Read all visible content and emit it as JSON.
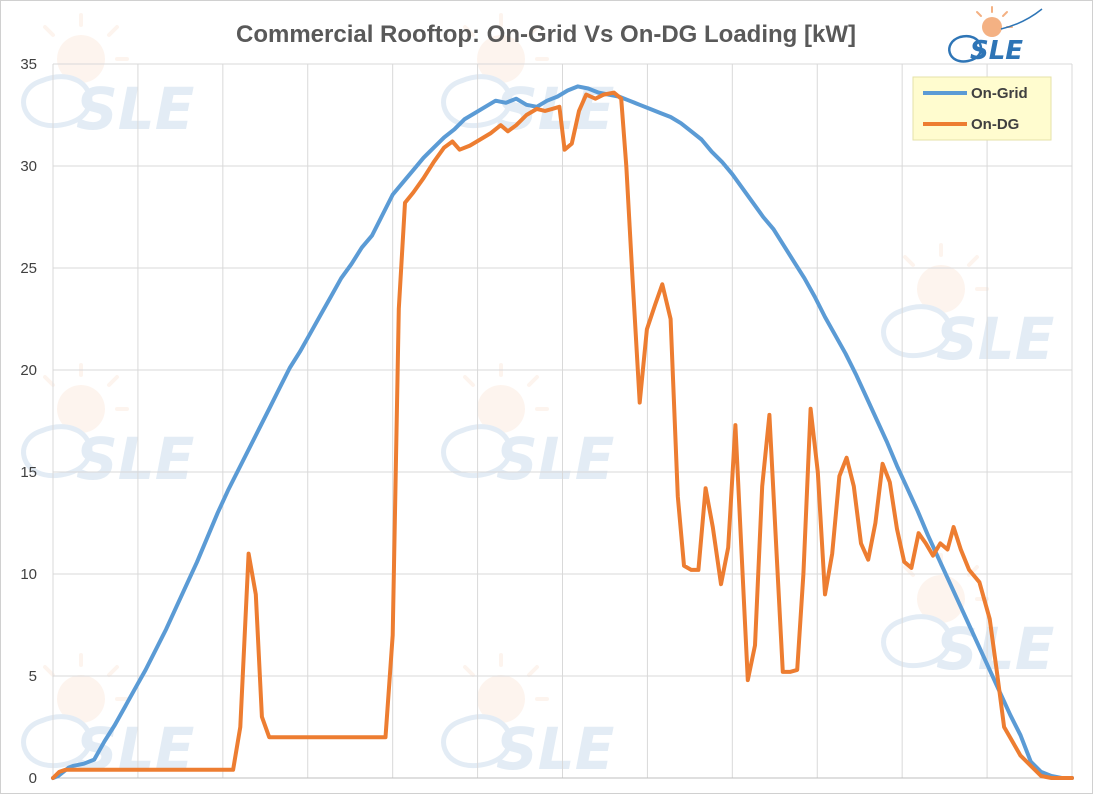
{
  "logo": {
    "text": "SLE"
  },
  "colors": {
    "on_grid": "#5b9bd5",
    "on_dg": "#ed7d31",
    "grid": "#d9d9d9",
    "legend_bg": "#fffccf",
    "logo_blue": "#2e75b6",
    "logo_sun": "#f4b183"
  },
  "chart_data": {
    "type": "line",
    "title": "Commercial Rooftop: On-Grid Vs On-DG Loading [kW]",
    "xlabel": "",
    "ylabel": "",
    "ylim": [
      0,
      35
    ],
    "yticks": [
      "0",
      "5",
      "10",
      "15",
      "20",
      "25",
      "30",
      "35"
    ],
    "grid": true,
    "legend": "top-right",
    "series": [
      {
        "name": "On-Grid",
        "points": [
          [
            0,
            0
          ],
          [
            0.5,
            0.1
          ],
          [
            1,
            0.3
          ],
          [
            1.5,
            0.5
          ],
          [
            2,
            0.6
          ],
          [
            3,
            0.7
          ],
          [
            4,
            0.9
          ],
          [
            5,
            1.8
          ],
          [
            6,
            2.6
          ],
          [
            7,
            3.5
          ],
          [
            8,
            4.4
          ],
          [
            9,
            5.3
          ],
          [
            10,
            6.3
          ],
          [
            11,
            7.3
          ],
          [
            12,
            8.4
          ],
          [
            13,
            9.5
          ],
          [
            14,
            10.6
          ],
          [
            15,
            11.8
          ],
          [
            16,
            13.0
          ],
          [
            17,
            14.1
          ],
          [
            18,
            15.1
          ],
          [
            19,
            16.1
          ],
          [
            20,
            17.1
          ],
          [
            21,
            18.1
          ],
          [
            22,
            19.1
          ],
          [
            23,
            20.1
          ],
          [
            24,
            20.9
          ],
          [
            25,
            21.8
          ],
          [
            26,
            22.7
          ],
          [
            27,
            23.6
          ],
          [
            28,
            24.5
          ],
          [
            29,
            25.2
          ],
          [
            30,
            26.0
          ],
          [
            31,
            26.6
          ],
          [
            32,
            27.6
          ],
          [
            33,
            28.6
          ],
          [
            34,
            29.2
          ],
          [
            35,
            29.8
          ],
          [
            36,
            30.4
          ],
          [
            37,
            30.9
          ],
          [
            38,
            31.4
          ],
          [
            39,
            31.8
          ],
          [
            40,
            32.3
          ],
          [
            41,
            32.6
          ],
          [
            42,
            32.9
          ],
          [
            43,
            33.2
          ],
          [
            44,
            33.1
          ],
          [
            45,
            33.3
          ],
          [
            46,
            33.0
          ],
          [
            47,
            32.9
          ],
          [
            48,
            33.2
          ],
          [
            49,
            33.4
          ],
          [
            50,
            33.7
          ],
          [
            51,
            33.9
          ],
          [
            52,
            33.8
          ],
          [
            53,
            33.6
          ],
          [
            54,
            33.5
          ],
          [
            55,
            33.4
          ],
          [
            56,
            33.2
          ],
          [
            57,
            33.0
          ],
          [
            58,
            32.8
          ],
          [
            59,
            32.6
          ],
          [
            60,
            32.4
          ],
          [
            61,
            32.1
          ],
          [
            62,
            31.7
          ],
          [
            63,
            31.3
          ],
          [
            64,
            30.7
          ],
          [
            65,
            30.2
          ],
          [
            66,
            29.6
          ],
          [
            67,
            28.9
          ],
          [
            68,
            28.2
          ],
          [
            69,
            27.5
          ],
          [
            70,
            26.9
          ],
          [
            71,
            26.1
          ],
          [
            72,
            25.3
          ],
          [
            73,
            24.5
          ],
          [
            74,
            23.6
          ],
          [
            75,
            22.6
          ],
          [
            76,
            21.7
          ],
          [
            77,
            20.8
          ],
          [
            78,
            19.8
          ],
          [
            79,
            18.7
          ],
          [
            80,
            17.6
          ],
          [
            81,
            16.5
          ],
          [
            82,
            15.3
          ],
          [
            83,
            14.2
          ],
          [
            84,
            13.1
          ],
          [
            85,
            11.9
          ],
          [
            86,
            10.8
          ],
          [
            87,
            9.7
          ],
          [
            88,
            8.6
          ],
          [
            89,
            7.5
          ],
          [
            90,
            6.4
          ],
          [
            91,
            5.3
          ],
          [
            92,
            4.2
          ],
          [
            93,
            3.1
          ],
          [
            94,
            2.1
          ],
          [
            95,
            0.8
          ],
          [
            96,
            0.3
          ],
          [
            97,
            0.1
          ],
          [
            98,
            0
          ],
          [
            99,
            0
          ]
        ]
      },
      {
        "name": "On-DG",
        "points": [
          [
            0,
            0
          ],
          [
            0.6,
            0.3
          ],
          [
            1.2,
            0.4
          ],
          [
            2,
            0.4
          ],
          [
            4,
            0.4
          ],
          [
            6,
            0.4
          ],
          [
            8,
            0.4
          ],
          [
            10,
            0.4
          ],
          [
            12,
            0.4
          ],
          [
            14,
            0.4
          ],
          [
            16,
            0.4
          ],
          [
            17.5,
            0.4
          ],
          [
            18.2,
            2.5
          ],
          [
            19,
            11.0
          ],
          [
            19.7,
            9.0
          ],
          [
            20.3,
            3.0
          ],
          [
            21,
            2.0
          ],
          [
            23,
            2.0
          ],
          [
            25,
            2.0
          ],
          [
            27,
            2.0
          ],
          [
            29,
            2.0
          ],
          [
            31,
            2.0
          ],
          [
            32.3,
            2.0
          ],
          [
            33,
            7.0
          ],
          [
            33.6,
            23.0
          ],
          [
            34.2,
            28.2
          ],
          [
            35,
            28.7
          ],
          [
            36,
            29.4
          ],
          [
            37,
            30.2
          ],
          [
            38,
            30.9
          ],
          [
            38.8,
            31.2
          ],
          [
            39.5,
            30.8
          ],
          [
            40.5,
            31.0
          ],
          [
            41.5,
            31.3
          ],
          [
            42.5,
            31.6
          ],
          [
            43.5,
            32.0
          ],
          [
            44.2,
            31.7
          ],
          [
            45,
            32.0
          ],
          [
            46,
            32.5
          ],
          [
            47,
            32.8
          ],
          [
            47.8,
            32.7
          ],
          [
            48.5,
            32.8
          ],
          [
            49.2,
            32.9
          ],
          [
            49.7,
            30.8
          ],
          [
            50.4,
            31.1
          ],
          [
            51.1,
            32.7
          ],
          [
            51.8,
            33.5
          ],
          [
            52.7,
            33.3
          ],
          [
            53.5,
            33.5
          ],
          [
            54.5,
            33.6
          ],
          [
            55.2,
            33.3
          ],
          [
            55.7,
            30.0
          ],
          [
            56.3,
            24.5
          ],
          [
            57,
            18.4
          ],
          [
            57.7,
            22.0
          ],
          [
            58.5,
            23.2
          ],
          [
            59.2,
            24.2
          ],
          [
            60,
            22.5
          ],
          [
            60.7,
            13.8
          ],
          [
            61.3,
            10.4
          ],
          [
            62,
            10.2
          ],
          [
            62.7,
            10.2
          ],
          [
            63.4,
            14.2
          ],
          [
            64.1,
            12.3
          ],
          [
            64.9,
            9.5
          ],
          [
            65.6,
            11.3
          ],
          [
            66.3,
            17.3
          ],
          [
            66.9,
            11.0
          ],
          [
            67.5,
            4.8
          ],
          [
            68.2,
            6.5
          ],
          [
            68.9,
            14.3
          ],
          [
            69.6,
            17.8
          ],
          [
            70.3,
            11.0
          ],
          [
            70.9,
            5.2
          ],
          [
            71.6,
            5.2
          ],
          [
            72.3,
            5.3
          ],
          [
            72.9,
            10.0
          ],
          [
            73.6,
            18.1
          ],
          [
            74.3,
            15.0
          ],
          [
            75,
            9.0
          ],
          [
            75.7,
            11.0
          ],
          [
            76.4,
            14.8
          ],
          [
            77.1,
            15.7
          ],
          [
            77.8,
            14.3
          ],
          [
            78.5,
            11.5
          ],
          [
            79.2,
            10.7
          ],
          [
            79.9,
            12.5
          ],
          [
            80.6,
            15.4
          ],
          [
            81.3,
            14.5
          ],
          [
            82,
            12.2
          ],
          [
            82.7,
            10.6
          ],
          [
            83.4,
            10.3
          ],
          [
            84.1,
            12.0
          ],
          [
            84.8,
            11.5
          ],
          [
            85.5,
            10.9
          ],
          [
            86.2,
            11.5
          ],
          [
            86.9,
            11.2
          ],
          [
            87.5,
            12.3
          ],
          [
            88.2,
            11.2
          ],
          [
            89,
            10.2
          ],
          [
            90,
            9.6
          ],
          [
            91,
            7.8
          ],
          [
            91.7,
            5.2
          ],
          [
            92.4,
            2.5
          ],
          [
            93.2,
            1.8
          ],
          [
            94,
            1.1
          ],
          [
            95,
            0.6
          ],
          [
            96,
            0.1
          ],
          [
            97,
            0
          ],
          [
            98,
            0
          ],
          [
            99,
            0
          ]
        ]
      }
    ]
  }
}
